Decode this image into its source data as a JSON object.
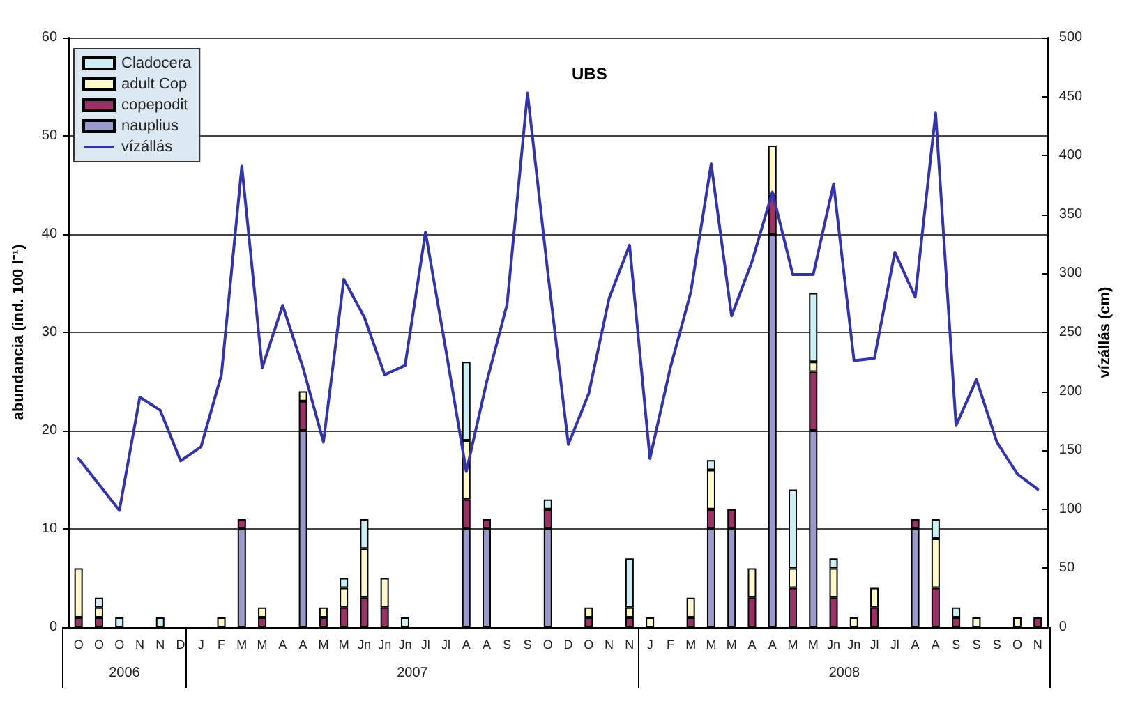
{
  "chart_data": {
    "type": "bar",
    "title": "UBS",
    "ylabel": "abundancia (ind. 100 l⁻¹)",
    "y2label": "vízállás (cm)",
    "categories": [
      "O",
      "O",
      "O",
      "N",
      "N",
      "D",
      "J",
      "F",
      "M",
      "M",
      "A",
      "A",
      "M",
      "M",
      "Jn",
      "Jn",
      "Jn",
      "Jl",
      "Jl",
      "A",
      "A",
      "S",
      "S",
      "O",
      "D",
      "O",
      "N",
      "N",
      "J",
      "F",
      "M",
      "M",
      "M",
      "A",
      "A",
      "M",
      "M",
      "Jn",
      "Jn",
      "Jl",
      "Jl",
      "A",
      "A",
      "S",
      "S",
      "S",
      "O",
      "N"
    ],
    "stacked": true,
    "series": [
      {
        "name": "nauplius",
        "color": "#9999cc",
        "values": [
          null,
          null,
          null,
          null,
          null,
          null,
          null,
          null,
          10,
          null,
          null,
          20,
          null,
          null,
          null,
          null,
          null,
          null,
          null,
          10,
          10,
          null,
          null,
          10,
          null,
          null,
          null,
          null,
          null,
          null,
          null,
          10,
          10,
          null,
          40,
          null,
          20,
          null,
          null,
          null,
          null,
          10,
          null,
          null,
          null,
          null,
          null,
          null
        ]
      },
      {
        "name": "copepodit",
        "color": "#993366",
        "values": [
          1,
          1,
          null,
          null,
          null,
          null,
          null,
          null,
          1,
          1,
          null,
          3,
          1,
          2,
          3,
          2,
          null,
          null,
          null,
          3,
          1,
          null,
          null,
          2,
          null,
          1,
          null,
          1,
          null,
          null,
          1,
          2,
          2,
          3,
          4,
          4,
          6,
          3,
          null,
          2,
          null,
          1,
          4,
          1,
          null,
          null,
          null,
          1
        ]
      },
      {
        "name": "adult Cop",
        "color": "#fff8c8",
        "values": [
          5,
          1,
          null,
          null,
          null,
          null,
          null,
          1,
          null,
          1,
          null,
          1,
          1,
          2,
          5,
          3,
          null,
          null,
          null,
          6,
          null,
          null,
          null,
          null,
          null,
          1,
          null,
          1,
          1,
          null,
          2,
          4,
          null,
          3,
          5,
          2,
          1,
          3,
          1,
          2,
          null,
          null,
          5,
          null,
          1,
          null,
          1,
          null
        ]
      },
      {
        "name": "Cladocera",
        "color": "#cceef5",
        "values": [
          null,
          1,
          1,
          null,
          1,
          null,
          null,
          null,
          null,
          null,
          null,
          null,
          null,
          1,
          3,
          null,
          1,
          null,
          null,
          8,
          null,
          null,
          null,
          1,
          null,
          null,
          null,
          5,
          null,
          null,
          null,
          1,
          null,
          null,
          null,
          8,
          7,
          1,
          null,
          null,
          null,
          null,
          2,
          1,
          null,
          null,
          null,
          null
        ]
      },
      {
        "name": "vízállás",
        "type": "line",
        "axis": "y2",
        "color": "#3333aa",
        "values": [
          143,
          121,
          99,
          195,
          184,
          141,
          153,
          214,
          391,
          220,
          273,
          220,
          157,
          295,
          263,
          214,
          222,
          335,
          235,
          132,
          208,
          274,
          453,
          300,
          155,
          198,
          279,
          324,
          143,
          220,
          284,
          393,
          264,
          310,
          369,
          299,
          299,
          376,
          226,
          228,
          318,
          280,
          436,
          171,
          210,
          157,
          130,
          117
        ]
      }
    ],
    "ylim": [
      0,
      60
    ],
    "yticks": [
      0,
      10,
      20,
      30,
      40,
      50,
      60
    ],
    "y2lim": [
      0,
      500
    ],
    "y2ticks": [
      0,
      50,
      100,
      150,
      200,
      250,
      300,
      350,
      400,
      450,
      500
    ],
    "grid": "y",
    "legend": "top left",
    "marker": "none",
    "line_style": "solid",
    "annotations": [
      "2006",
      "2007",
      "2008"
    ]
  }
}
